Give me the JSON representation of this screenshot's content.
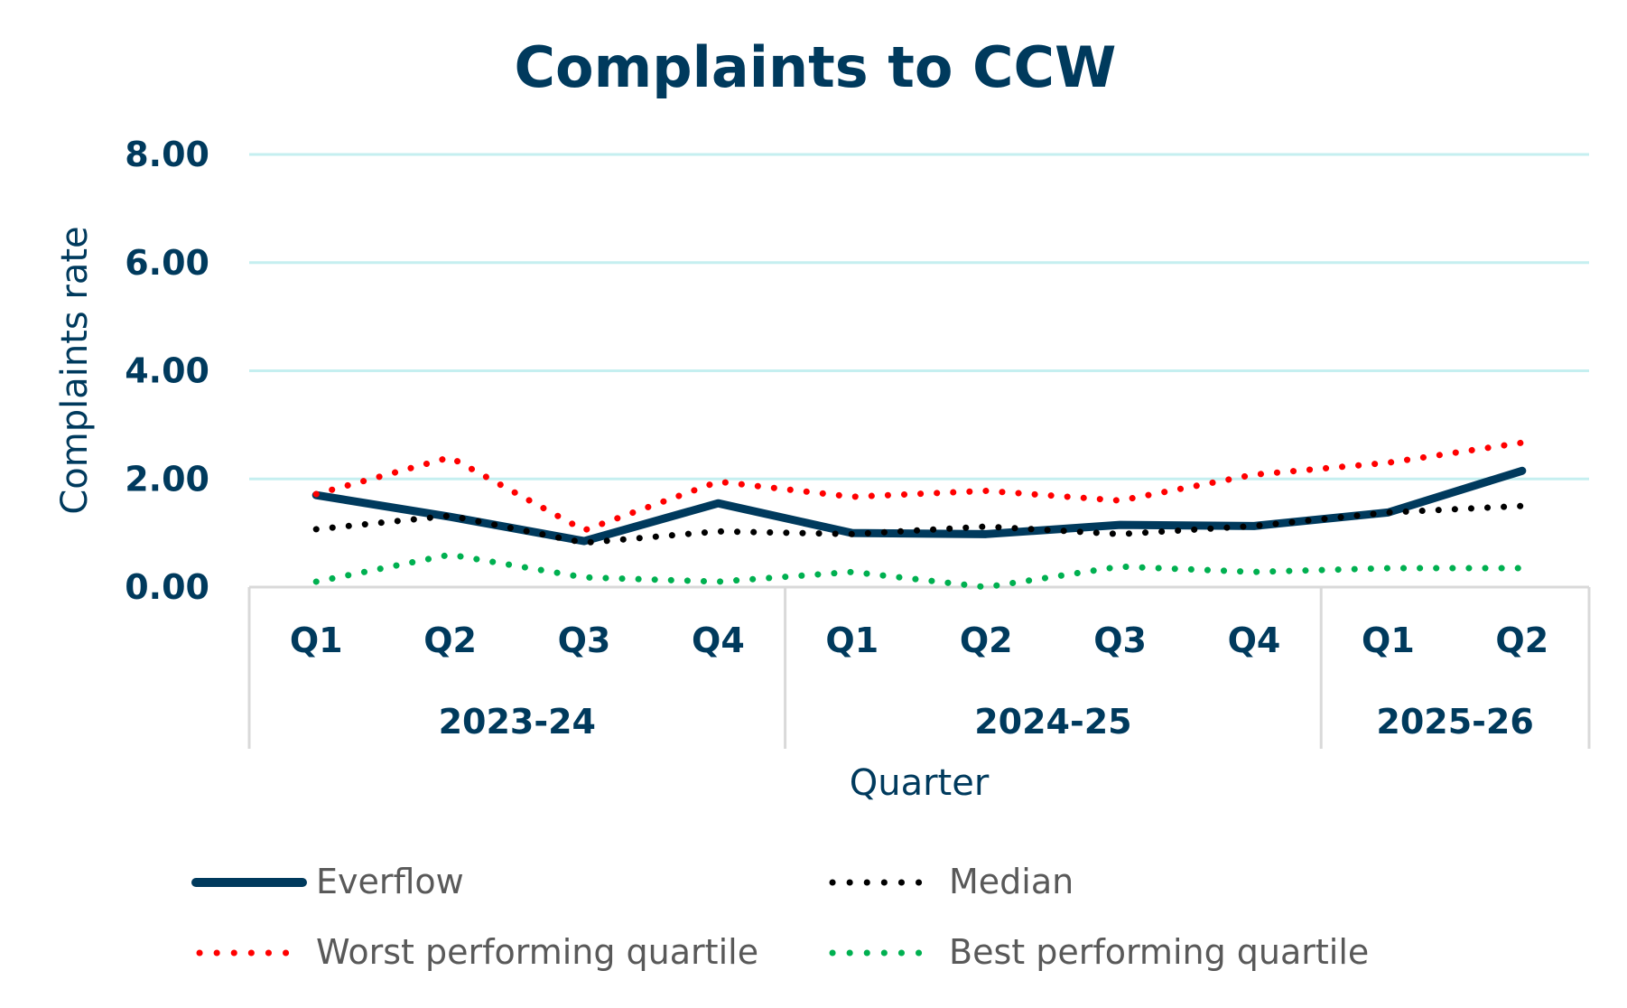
{
  "chart_data": {
    "type": "line",
    "title": "Complaints to CCW",
    "xlabel": "Quarter",
    "ylabel": "Complaints rate",
    "ylim": [
      0,
      8
    ],
    "yticks": [
      "0.00",
      "2.00",
      "4.00",
      "6.00",
      "8.00"
    ],
    "grid": true,
    "legend_position": "bottom",
    "categories": [
      "Q1",
      "Q2",
      "Q3",
      "Q4",
      "Q1",
      "Q2",
      "Q3",
      "Q4",
      "Q1",
      "Q2"
    ],
    "groups": [
      {
        "label": "2023-24",
        "count": 4
      },
      {
        "label": "2024-25",
        "count": 4
      },
      {
        "label": "2025-26",
        "count": 2
      }
    ],
    "series": [
      {
        "name": "Everflow",
        "color": "#003a5d",
        "style": "solid",
        "values": [
          1.7,
          1.3,
          0.85,
          1.55,
          1.0,
          0.98,
          1.15,
          1.13,
          1.38,
          2.15
        ]
      },
      {
        "name": "Median",
        "color": "#000000",
        "style": "dotted",
        "values": [
          1.07,
          1.32,
          0.82,
          1.03,
          0.98,
          1.12,
          0.98,
          1.13,
          1.38,
          1.5
        ]
      },
      {
        "name": "Worst performing quartile",
        "color": "#ff0000",
        "style": "dotted",
        "values": [
          1.72,
          2.4,
          1.05,
          1.95,
          1.67,
          1.78,
          1.6,
          2.08,
          2.3,
          2.67
        ]
      },
      {
        "name": "Best performing quartile",
        "color": "#00b050",
        "style": "dotted",
        "values": [
          0.1,
          0.6,
          0.18,
          0.1,
          0.28,
          0.0,
          0.38,
          0.28,
          0.35,
          0.35
        ]
      }
    ],
    "gridline_color": "#c5eff0"
  }
}
